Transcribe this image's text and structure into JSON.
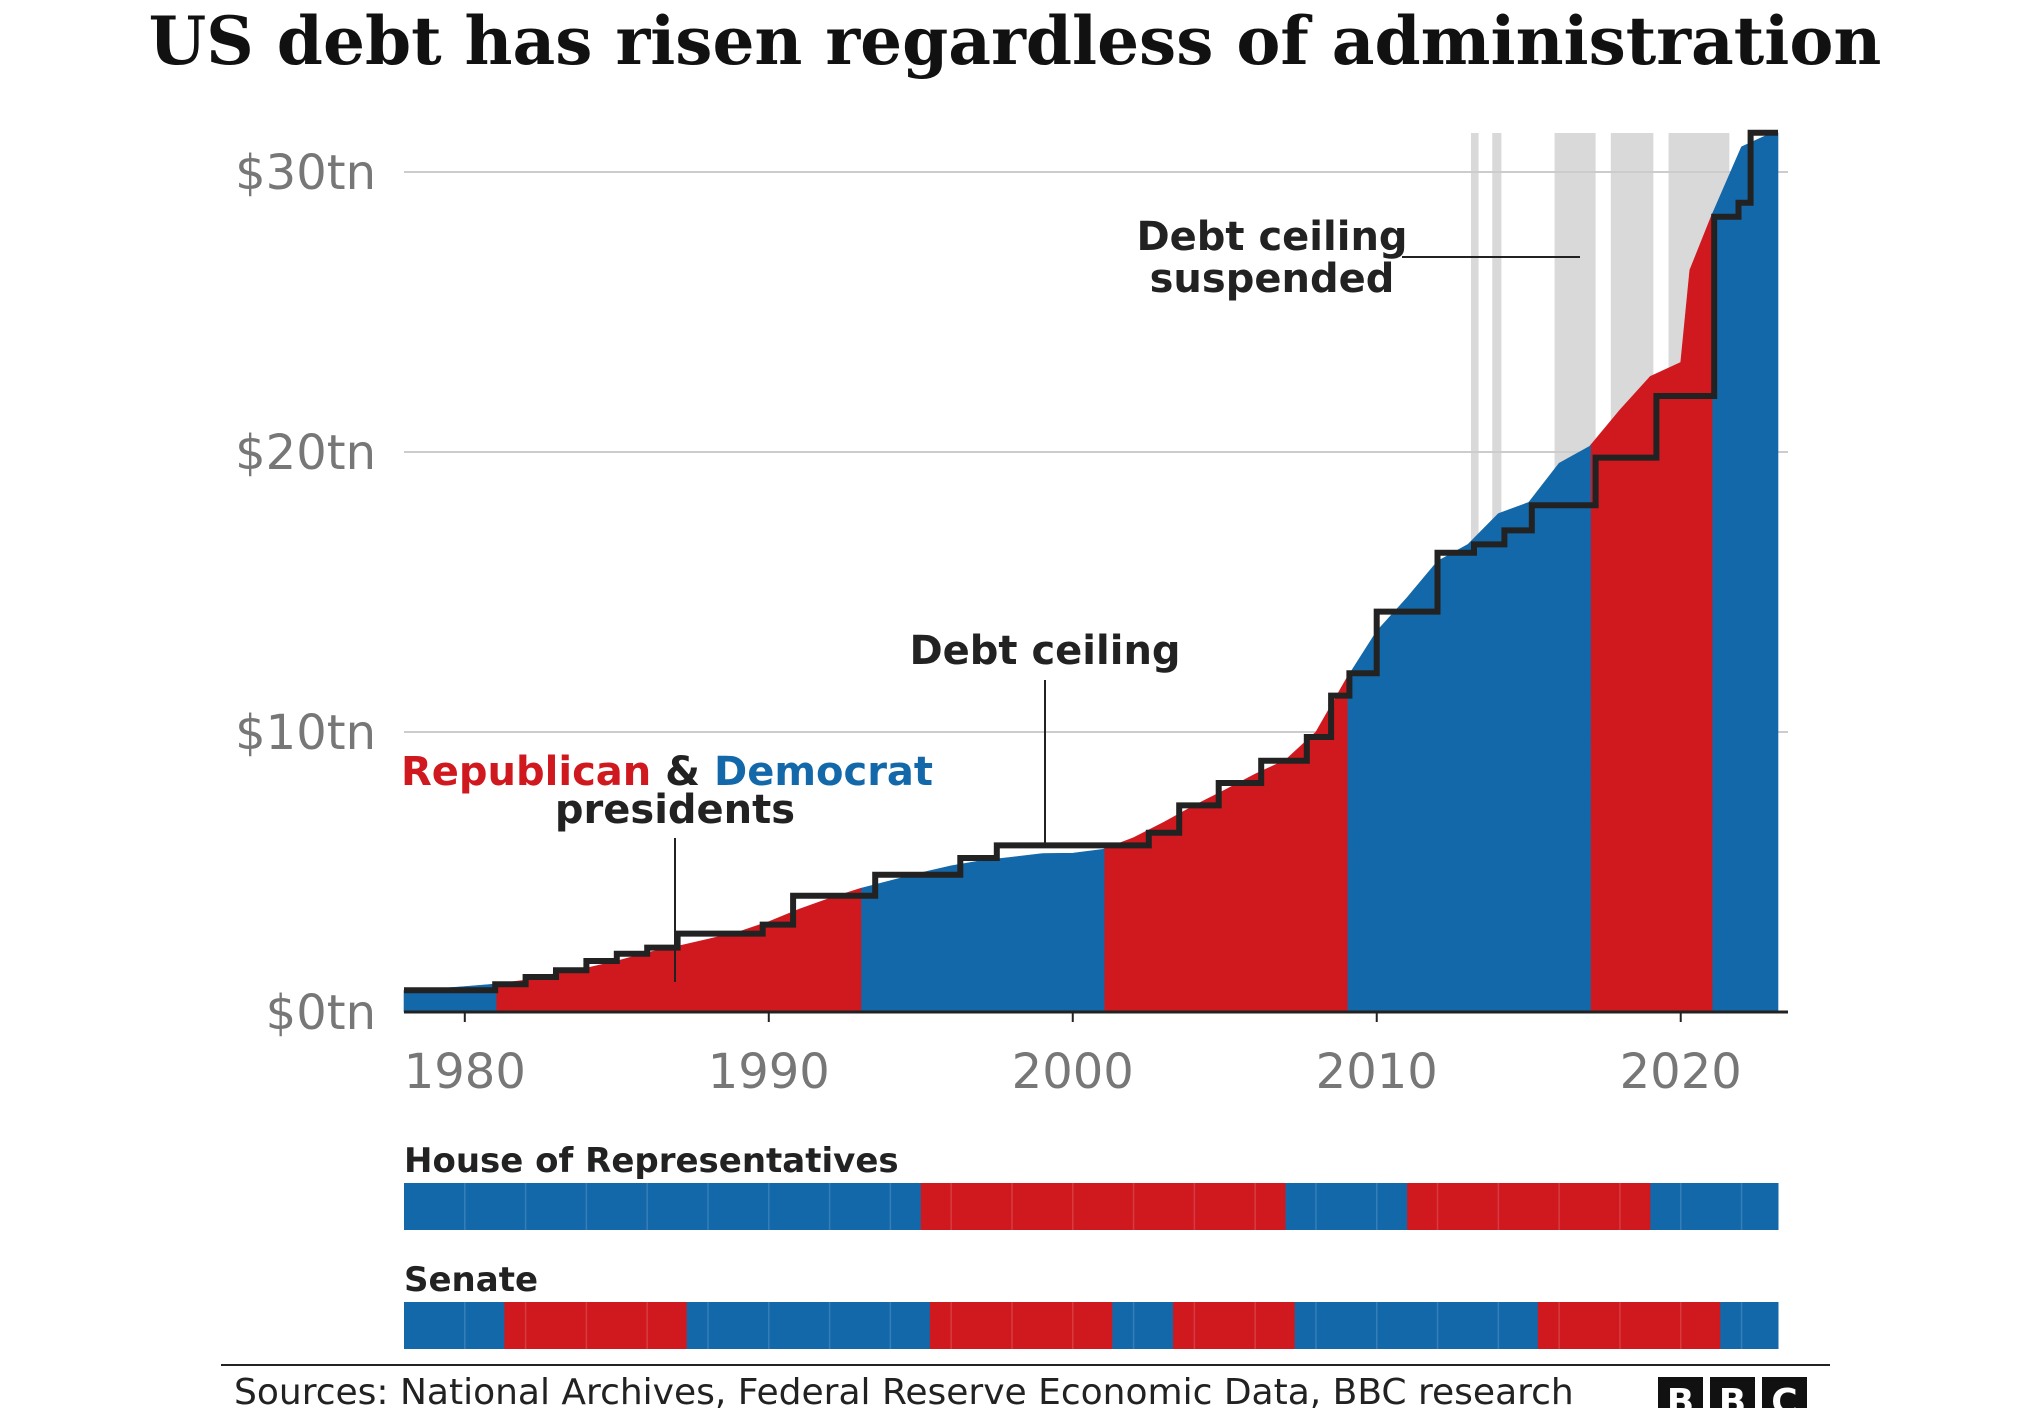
{
  "title": "US debt has risen regardless of administration",
  "colors": {
    "republican": "#d0191f",
    "democrat": "#1368aa",
    "ceiling_line": "#222222",
    "suspended_band": "#d9d9d9",
    "grid": "#cccccc",
    "axis_text": "#777777"
  },
  "chart_data": [
    {
      "type": "area",
      "title": "US debt has risen regardless of administration",
      "xlabel": "",
      "ylabel": "",
      "xlim": [
        1978,
        2023.2
      ],
      "ylim": [
        0,
        31.5
      ],
      "x_ticks": [
        1980,
        1990,
        2000,
        2010,
        2020
      ],
      "x_tick_labels": [
        "1980",
        "1990",
        "2000",
        "2010",
        "2020"
      ],
      "y_ticks": [
        0,
        10,
        20,
        30
      ],
      "y_tick_labels": [
        "$0tn",
        "$10tn",
        "$20tn",
        "$30tn"
      ],
      "grid": "horizontal",
      "series": [
        {
          "name": "Debt",
          "x": [
            1978,
            1979,
            1980,
            1981,
            1982,
            1983,
            1984,
            1985,
            1986,
            1987,
            1988,
            1989,
            1990,
            1991,
            1992,
            1993,
            1994,
            1995,
            1996,
            1997,
            1998,
            1999,
            2000,
            2001,
            2002,
            2003,
            2004,
            2005,
            2006,
            2007,
            2008,
            2009,
            2010,
            2011,
            2012,
            2013,
            2014,
            2015,
            2016,
            2017,
            2018,
            2019,
            2020,
            2020.3,
            2021,
            2022,
            2023
          ],
          "y": [
            0.77,
            0.83,
            0.91,
            1.0,
            1.14,
            1.38,
            1.57,
            1.82,
            2.12,
            2.35,
            2.6,
            2.86,
            3.23,
            3.67,
            4.06,
            4.41,
            4.69,
            4.97,
            5.22,
            5.41,
            5.53,
            5.66,
            5.67,
            5.81,
            6.23,
            6.78,
            7.38,
            7.93,
            8.5,
            9.0,
            10.0,
            11.9,
            13.6,
            14.8,
            16.1,
            16.7,
            17.8,
            18.2,
            19.6,
            20.2,
            21.5,
            22.7,
            23.2,
            26.5,
            28.4,
            30.9,
            31.4
          ]
        },
        {
          "name": "Debt ceiling",
          "x": [
            1978,
            1981,
            1981,
            1982,
            1982,
            1983,
            1983,
            1984,
            1984,
            1985,
            1985,
            1986,
            1986,
            1987,
            1987,
            1989.8,
            1989.8,
            1990.8,
            1990.8,
            1993.5,
            1993.5,
            1996.3,
            1996.3,
            1997.5,
            1997.5,
            2002.5,
            2002.5,
            2003.5,
            2003.5,
            2004.8,
            2004.8,
            2006.2,
            2006.2,
            2007.7,
            2007.7,
            2008.5,
            2008.5,
            2009.1,
            2009.1,
            2010,
            2010,
            2012,
            2012,
            2013.2,
            2013.2,
            2014.2,
            2014.2,
            2015.1,
            2015.1,
            2017.2,
            2017.2,
            2019.2,
            2019.2,
            2021.1,
            2021.1,
            2021.9,
            2021.9,
            2022.3,
            2022.3,
            2023.2
          ],
          "y": [
            0.78,
            0.78,
            0.99,
            0.99,
            1.25,
            1.25,
            1.49,
            1.49,
            1.82,
            1.82,
            2.08,
            2.08,
            2.3,
            2.3,
            2.8,
            2.8,
            3.12,
            3.12,
            4.15,
            4.15,
            4.9,
            4.9,
            5.5,
            5.5,
            5.95,
            5.95,
            6.4,
            6.4,
            7.38,
            7.38,
            8.18,
            8.18,
            8.97,
            8.97,
            9.82,
            9.82,
            11.3,
            11.3,
            12.1,
            12.1,
            14.3,
            14.3,
            16.4,
            16.4,
            16.7,
            16.7,
            17.2,
            17.2,
            18.1,
            18.1,
            19.8,
            19.8,
            22.0,
            22.0,
            28.4,
            28.4,
            28.9,
            28.9,
            31.4,
            31.4
          ]
        }
      ],
      "presidents": [
        {
          "party": "Democrat",
          "start": 1978,
          "end": 1981.05
        },
        {
          "party": "Republican",
          "start": 1981.05,
          "end": 1993.05
        },
        {
          "party": "Democrat",
          "start": 1993.05,
          "end": 2001.05
        },
        {
          "party": "Republican",
          "start": 2001.05,
          "end": 2009.05
        },
        {
          "party": "Democrat",
          "start": 2009.05,
          "end": 2017.05
        },
        {
          "party": "Republican",
          "start": 2017.05,
          "end": 2021.05
        },
        {
          "party": "Democrat",
          "start": 2021.05,
          "end": 2023.2
        }
      ],
      "debt_ceiling_suspended": [
        {
          "start": 2013.1,
          "end": 2013.35
        },
        {
          "start": 2013.8,
          "end": 2014.1
        },
        {
          "start": 2015.85,
          "end": 2017.2
        },
        {
          "start": 2017.7,
          "end": 2019.1
        },
        {
          "start": 2019.6,
          "end": 2021.6
        }
      ],
      "annotations": {
        "parties_republican": "Republican",
        "parties_amp": "&",
        "parties_democrat": "Democrat",
        "parties_line2": "presidents",
        "debt_ceiling": "Debt ceiling",
        "suspended_line1": "Debt ceiling",
        "suspended_line2": "suspended"
      }
    },
    {
      "type": "heatmap",
      "title": "House of Representatives",
      "segments": [
        {
          "party": "Democrat",
          "start": 1978,
          "end": 1995
        },
        {
          "party": "Republican",
          "start": 1995,
          "end": 2007
        },
        {
          "party": "Democrat",
          "start": 2007,
          "end": 2011
        },
        {
          "party": "Republican",
          "start": 2011,
          "end": 2019
        },
        {
          "party": "Democrat",
          "start": 2019,
          "end": 2023.2
        }
      ]
    },
    {
      "type": "heatmap",
      "title": "Senate",
      "segments": [
        {
          "party": "Democrat",
          "start": 1978,
          "end": 1981.3
        },
        {
          "party": "Republican",
          "start": 1981.3,
          "end": 1987.3
        },
        {
          "party": "Democrat",
          "start": 1987.3,
          "end": 1995.3
        },
        {
          "party": "Republican",
          "start": 1995.3,
          "end": 2001.3
        },
        {
          "party": "Democrat",
          "start": 2001.3,
          "end": 2003.3
        },
        {
          "party": "Republican",
          "start": 2003.3,
          "end": 2007.3
        },
        {
          "party": "Democrat",
          "start": 2007.3,
          "end": 2015.3
        },
        {
          "party": "Republican",
          "start": 2015.3,
          "end": 2021.3
        },
        {
          "party": "Democrat",
          "start": 2021.3,
          "end": 2023.2
        }
      ]
    }
  ],
  "source": "Sources: National Archives, Federal Reserve Economic Data, BBC research",
  "logo": [
    "B",
    "B",
    "C"
  ]
}
